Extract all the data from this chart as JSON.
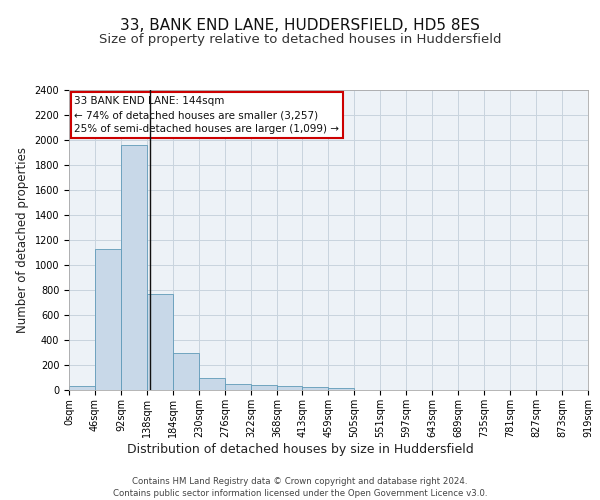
{
  "title_line1": "33, BANK END LANE, HUDDERSFIELD, HD5 8ES",
  "title_line2": "Size of property relative to detached houses in Huddersfield",
  "xlabel": "Distribution of detached houses by size in Huddersfield",
  "ylabel": "Number of detached properties",
  "footer_line1": "Contains HM Land Registry data © Crown copyright and database right 2024.",
  "footer_line2": "Contains public sector information licensed under the Open Government Licence v3.0.",
  "bar_edges": [
    0,
    46,
    92,
    138,
    184,
    230,
    276,
    322,
    368,
    413,
    459,
    505,
    551,
    597,
    643,
    689,
    735,
    781,
    827,
    873,
    919
  ],
  "bar_values": [
    35,
    1130,
    1960,
    770,
    300,
    100,
    45,
    40,
    35,
    22,
    18,
    0,
    0,
    0,
    0,
    0,
    0,
    0,
    0,
    0
  ],
  "bar_color": "#c8d8e8",
  "bar_edge_color": "#5f9ab8",
  "background_color": "#edf2f7",
  "grid_color": "#c8d4de",
  "annotation_text_line1": "33 BANK END LANE: 144sqm",
  "annotation_text_line2": "← 74% of detached houses are smaller (3,257)",
  "annotation_text_line3": "25% of semi-detached houses are larger (1,099) →",
  "annotation_box_color": "#cc0000",
  "vline_x": 144,
  "ylim": [
    0,
    2400
  ],
  "yticks": [
    0,
    200,
    400,
    600,
    800,
    1000,
    1200,
    1400,
    1600,
    1800,
    2000,
    2200,
    2400
  ],
  "xtick_labels": [
    "0sqm",
    "46sqm",
    "92sqm",
    "138sqm",
    "184sqm",
    "230sqm",
    "276sqm",
    "322sqm",
    "368sqm",
    "413sqm",
    "459sqm",
    "505sqm",
    "551sqm",
    "597sqm",
    "643sqm",
    "689sqm",
    "735sqm",
    "781sqm",
    "827sqm",
    "873sqm",
    "919sqm"
  ],
  "title_fontsize": 11,
  "subtitle_fontsize": 9.5,
  "ylabel_fontsize": 8.5,
  "xlabel_fontsize": 9,
  "tick_fontsize": 7,
  "annotation_fontsize": 7.5,
  "footer_fontsize": 6.2
}
